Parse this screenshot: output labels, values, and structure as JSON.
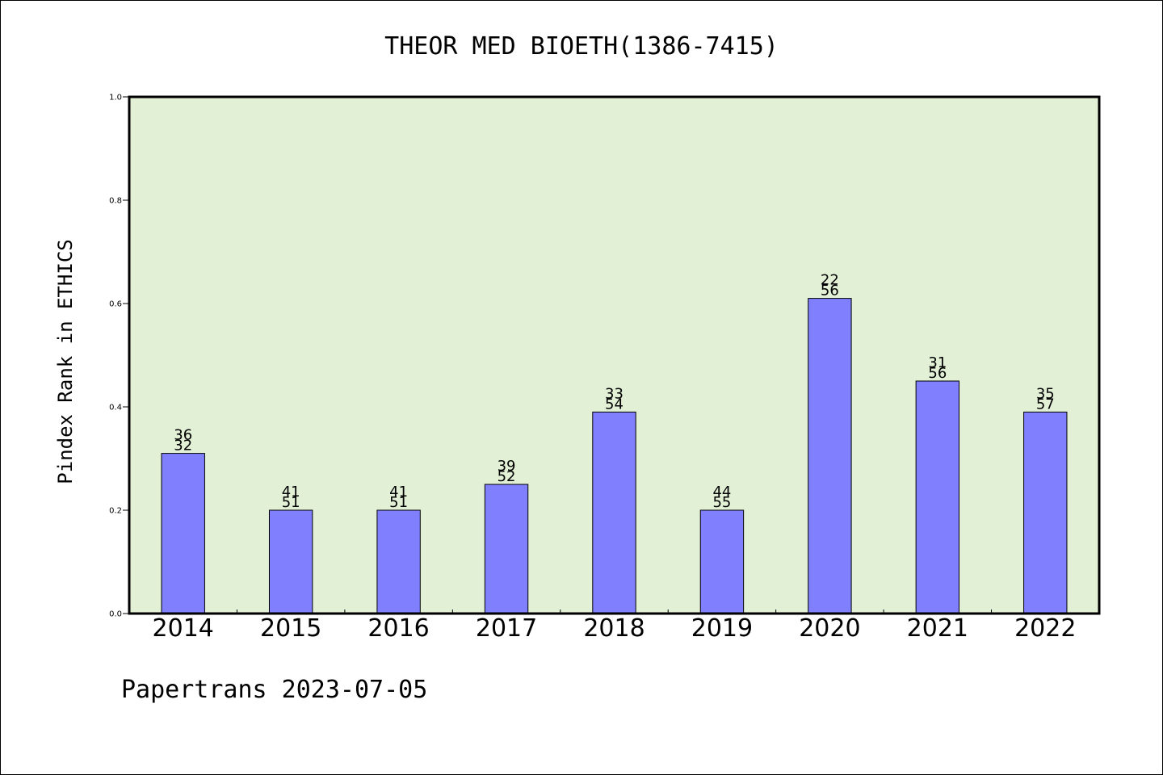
{
  "footer": "Papertrans 2023-07-05",
  "chart_data": {
    "type": "bar",
    "title": "THEOR MED BIOETH(1386-7415)",
    "ylabel": "Pindex Rank in ETHICS",
    "xlabel": "",
    "ylim": [
      0,
      1.0
    ],
    "yticks": [
      "0.0",
      "0.2",
      "0.4",
      "0.6",
      "0.8",
      "1.0"
    ],
    "categories": [
      "2014",
      "2015",
      "2016",
      "2017",
      "2018",
      "2019",
      "2020",
      "2021",
      "2022"
    ],
    "values": [
      0.31,
      0.2,
      0.2,
      0.25,
      0.39,
      0.2,
      0.61,
      0.45,
      0.39
    ],
    "labels_top": [
      "36",
      "41",
      "41",
      "39",
      "33",
      "44",
      "22",
      "31",
      "35"
    ],
    "labels_bottom": [
      "32",
      "51",
      "51",
      "52",
      "54",
      "55",
      "56",
      "56",
      "57"
    ],
    "colors": {
      "plot_bg": "#e2f0d6",
      "bar": "#8080ff",
      "bar_edge": "#000000"
    },
    "grid": false,
    "legend": "none"
  }
}
